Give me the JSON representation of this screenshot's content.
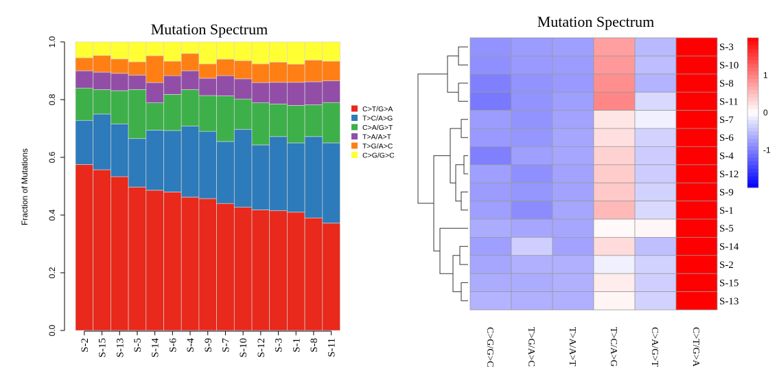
{
  "chart_data": [
    {
      "type": "bar",
      "stacked": true,
      "title": "Mutation Spectrum",
      "xlabel": "",
      "ylabel": "Fraction of Mutations",
      "ylim": [
        0,
        1
      ],
      "yticks": [
        "0.0",
        "0.2",
        "0.4",
        "0.6",
        "0.8",
        "1.0"
      ],
      "categories": [
        "S-2",
        "S-15",
        "S-13",
        "S-5",
        "S-14",
        "S-6",
        "S-4",
        "S-9",
        "S-7",
        "S-10",
        "S-12",
        "S-3",
        "S-1",
        "S-8",
        "S-11"
      ],
      "series": [
        {
          "name": "C>T/G>A",
          "color": "#e8291c",
          "values": [
            0.575,
            0.557,
            0.533,
            0.497,
            0.486,
            0.48,
            0.462,
            0.457,
            0.44,
            0.427,
            0.418,
            0.415,
            0.41,
            0.39,
            0.372
          ]
        },
        {
          "name": "T>C/A>G",
          "color": "#2d7bba",
          "values": [
            0.153,
            0.193,
            0.183,
            0.168,
            0.208,
            0.213,
            0.246,
            0.233,
            0.215,
            0.27,
            0.225,
            0.257,
            0.24,
            0.282,
            0.278
          ]
        },
        {
          "name": "C>A/G>T",
          "color": "#3db04a",
          "values": [
            0.112,
            0.085,
            0.115,
            0.17,
            0.095,
            0.125,
            0.127,
            0.124,
            0.158,
            0.105,
            0.146,
            0.113,
            0.13,
            0.11,
            0.14
          ]
        },
        {
          "name": "T>A/A>T",
          "color": "#924ea6",
          "values": [
            0.06,
            0.06,
            0.06,
            0.05,
            0.07,
            0.065,
            0.065,
            0.06,
            0.07,
            0.07,
            0.07,
            0.075,
            0.08,
            0.08,
            0.075
          ]
        },
        {
          "name": "T>G/A>C",
          "color": "#ff7f15",
          "values": [
            0.045,
            0.058,
            0.05,
            0.046,
            0.093,
            0.05,
            0.06,
            0.05,
            0.057,
            0.063,
            0.065,
            0.07,
            0.063,
            0.075,
            0.068
          ]
        },
        {
          "name": "C>G/G>C",
          "color": "#ffff33",
          "values": [
            0.055,
            0.047,
            0.059,
            0.069,
            0.048,
            0.067,
            0.04,
            0.076,
            0.06,
            0.065,
            0.076,
            0.07,
            0.077,
            0.063,
            0.067
          ]
        }
      ],
      "legend_position": "right"
    },
    {
      "type": "heatmap",
      "title": "Mutation Spectrum",
      "rows": [
        "S-3",
        "S-10",
        "S-8",
        "S-11",
        "S-7",
        "S-6",
        "S-4",
        "S-12",
        "S-9",
        "S-1",
        "S-5",
        "S-14",
        "S-2",
        "S-15",
        "S-13"
      ],
      "columns": [
        "C>G/G>C",
        "T>G/A>C",
        "T>A/A>T",
        "T>C/A>G",
        "C>A/G>T",
        "C>T/G>A"
      ],
      "values": [
        [
          -0.85,
          -0.78,
          -0.75,
          0.75,
          -0.55,
          2.1
        ],
        [
          -0.88,
          -0.8,
          -0.78,
          0.8,
          -0.52,
          2.05
        ],
        [
          -1.0,
          -0.85,
          -0.8,
          0.88,
          -0.6,
          2.0
        ],
        [
          -1.05,
          -0.85,
          -0.75,
          0.95,
          -0.3,
          2.05
        ],
        [
          -0.78,
          -0.85,
          -0.72,
          0.2,
          -0.12,
          2.15
        ],
        [
          -0.8,
          -0.82,
          -0.7,
          0.25,
          -0.35,
          2.15
        ],
        [
          -1.0,
          -0.75,
          -0.7,
          0.35,
          -0.4,
          2.15
        ],
        [
          -0.75,
          -0.88,
          -0.72,
          0.4,
          -0.4,
          2.15
        ],
        [
          -0.78,
          -0.82,
          -0.72,
          0.42,
          -0.35,
          2.15
        ],
        [
          -0.75,
          -0.9,
          -0.7,
          0.55,
          -0.3,
          2.15
        ],
        [
          -0.65,
          -0.7,
          -0.7,
          0.05,
          0.06,
          2.15
        ],
        [
          -0.75,
          -0.38,
          -0.72,
          0.28,
          -0.5,
          2.15
        ],
        [
          -0.7,
          -0.62,
          -0.62,
          -0.12,
          -0.35,
          2.15
        ],
        [
          -0.65,
          -0.65,
          -0.62,
          0.15,
          -0.38,
          2.15
        ],
        [
          -0.6,
          -0.62,
          -0.62,
          0.08,
          -0.35,
          2.15
        ]
      ],
      "color_scale": {
        "min_value": -2,
        "max_value": 2,
        "low_color": "#0000ff",
        "mid_color": "#ffffff",
        "high_color": "#ff0000",
        "ticks": [
          "-1",
          "0",
          "1"
        ]
      },
      "dendrogram_side": "left"
    }
  ]
}
